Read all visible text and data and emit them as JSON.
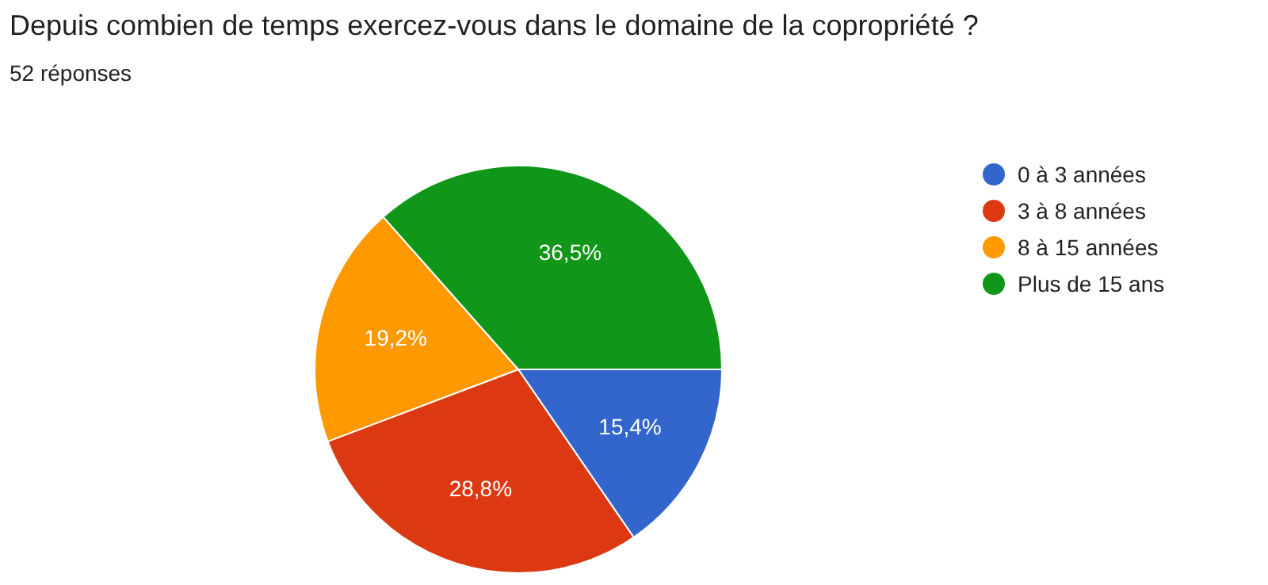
{
  "chart_data": {
    "type": "pie",
    "title": "Depuis combien de temps exercez-vous dans le domaine de la copropriété ?",
    "subtitle": "52 réponses",
    "categories": [
      "0 à 3 années",
      "3 à 8 années",
      "8 à 15 années",
      "Plus de 15 ans"
    ],
    "values": [
      15.4,
      28.8,
      19.2,
      36.5
    ],
    "value_labels": [
      "15,4%",
      "28,8%",
      "19,2%",
      "36,5%"
    ],
    "colors": [
      "#3366cc",
      "#dc3912",
      "#ff9900",
      "#109618"
    ],
    "legend": "right"
  }
}
